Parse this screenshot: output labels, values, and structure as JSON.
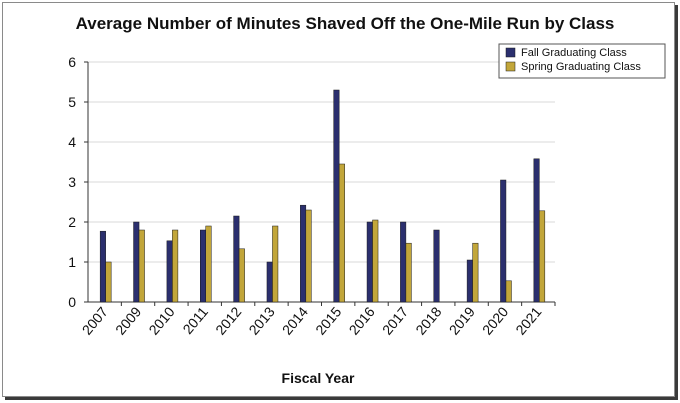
{
  "chart_data": {
    "type": "bar",
    "title": "Average Number of Minutes Shaved Off the One-Mile Run by Class",
    "xlabel": "Fiscal Year",
    "ylabel": "",
    "ylim": [
      0,
      6
    ],
    "yticks": [
      0,
      1,
      2,
      3,
      4,
      5,
      6
    ],
    "grid": true,
    "legend_position": "top-right",
    "categories": [
      "2007",
      "2009",
      "2010",
      "2011",
      "2012",
      "2013",
      "2014",
      "2015",
      "2016",
      "2017",
      "2018",
      "2019",
      "2020",
      "2021"
    ],
    "series": [
      {
        "name": "Fall Graduating Class",
        "color": "#2b2f6e",
        "values": [
          1.77,
          2.0,
          1.53,
          1.8,
          2.15,
          1.0,
          2.42,
          5.3,
          2.0,
          2.0,
          1.8,
          1.05,
          3.05,
          3.58
        ]
      },
      {
        "name": "Spring Graduating Class",
        "color": "#c2a63a",
        "values": [
          1.0,
          1.8,
          1.8,
          1.9,
          1.33,
          1.9,
          2.3,
          3.45,
          2.05,
          1.47,
          0,
          1.47,
          0.53,
          2.28
        ]
      }
    ]
  }
}
